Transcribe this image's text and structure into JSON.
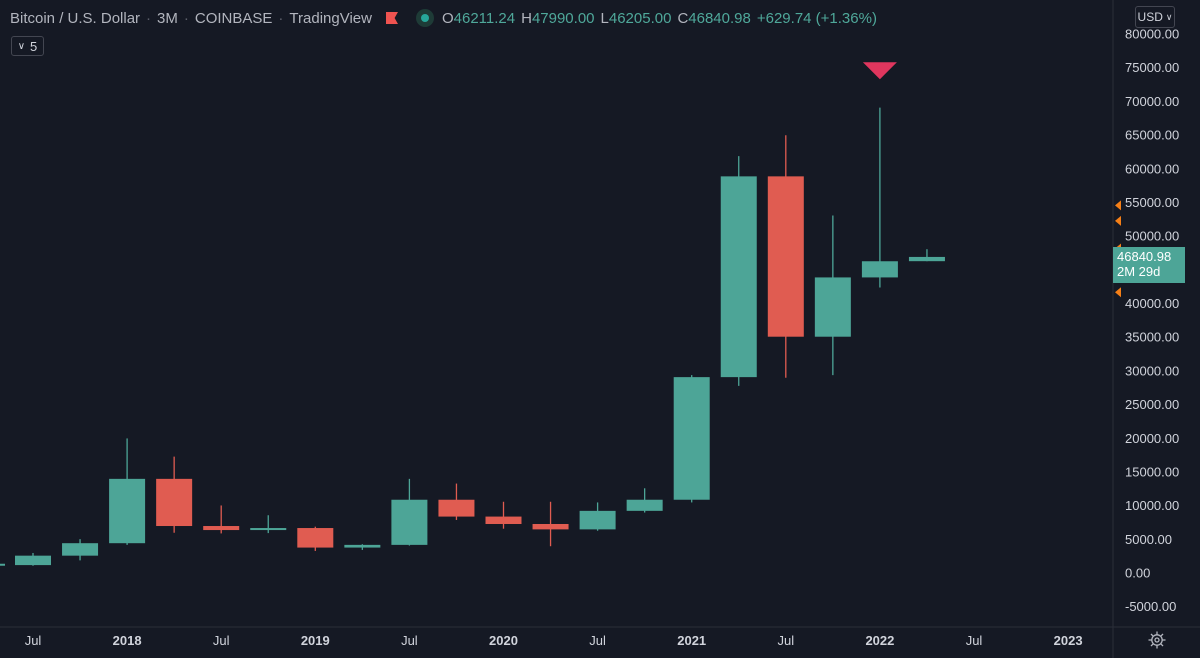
{
  "legend": {
    "symbol": "Bitcoin / U.S. Dollar",
    "interval": "3M",
    "exchange": "COINBASE",
    "source": "TradingView",
    "o_label": "O",
    "o_value": "46211.24",
    "h_label": "H",
    "h_value": "47990.00",
    "l_label": "L",
    "l_value": "46205.00",
    "c_label": "C",
    "c_value": "46840.98",
    "change": "+629.74 (+1.36%)"
  },
  "indicator_toggle": {
    "label": "5"
  },
  "currency": {
    "label": "USD"
  },
  "last_price": {
    "price": "46840.98",
    "countdown": "2M 29d"
  },
  "colors": {
    "background": "#151924",
    "up": "#4da597",
    "down": "#e05c51",
    "marker": "#e0365e",
    "axis_text": "#d1d4dc",
    "alert": "#f57f17"
  },
  "icons": {
    "alert_flag": "flag-icon",
    "status": "dot-icon",
    "settings": "gear-icon",
    "signal": "triangle-down-icon"
  },
  "chart_data": {
    "type": "candlestick",
    "title": "Bitcoin / U.S. Dollar",
    "ylim": [
      -7500,
      82000
    ],
    "y_ticks": [
      "80000.00",
      "75000.00",
      "70000.00",
      "65000.00",
      "60000.00",
      "55000.00",
      "50000.00",
      "45000.00",
      "40000.00",
      "35000.00",
      "30000.00",
      "25000.00",
      "20000.00",
      "15000.00",
      "10000.00",
      "5000.00",
      "0.00",
      "-5000.00"
    ],
    "x_ticks": [
      {
        "label": "Jul",
        "period": 0.5
      },
      {
        "label": "2018",
        "period": 2.5
      },
      {
        "label": "Jul",
        "period": 4.5
      },
      {
        "label": "2019",
        "period": 6.5
      },
      {
        "label": "Jul",
        "period": 8.5
      },
      {
        "label": "2020",
        "period": 10.5
      },
      {
        "label": "Jul",
        "period": 12.5
      },
      {
        "label": "2021",
        "period": 14.5
      },
      {
        "label": "Jul",
        "period": 16.5
      },
      {
        "label": "2022",
        "period": 18.5
      },
      {
        "label": "Jul",
        "period": 20.5
      },
      {
        "label": "2023",
        "period": 22.5
      }
    ],
    "candles": [
      {
        "period": "Q2 2017",
        "o": 1100,
        "h": 2900,
        "l": 1000,
        "c": 2500
      },
      {
        "period": "Q3 2017",
        "o": 2500,
        "h": 4950,
        "l": 1800,
        "c": 4350
      },
      {
        "period": "Q4 2017",
        "o": 4350,
        "h": 19900,
        "l": 4100,
        "c": 13900
      },
      {
        "period": "Q1 2018",
        "o": 13900,
        "h": 17200,
        "l": 5900,
        "c": 6900
      },
      {
        "period": "Q2 2018",
        "o": 6900,
        "h": 9950,
        "l": 5800,
        "c": 6300
      },
      {
        "period": "Q3 2018",
        "o": 6300,
        "h": 8500,
        "l": 5850,
        "c": 6600
      },
      {
        "period": "Q4 2018",
        "o": 6600,
        "h": 6800,
        "l": 3200,
        "c": 3700
      },
      {
        "period": "Q1 2019",
        "o": 3700,
        "h": 4200,
        "l": 3350,
        "c": 4100
      },
      {
        "period": "Q2 2019",
        "o": 4100,
        "h": 13900,
        "l": 4000,
        "c": 10800
      },
      {
        "period": "Q3 2019",
        "o": 10800,
        "h": 13200,
        "l": 7800,
        "c": 8300
      },
      {
        "period": "Q4 2019",
        "o": 8300,
        "h": 10500,
        "l": 6500,
        "c": 7200
      },
      {
        "period": "Q1 2020",
        "o": 7200,
        "h": 10500,
        "l": 3900,
        "c": 6400
      },
      {
        "period": "Q2 2020",
        "o": 6400,
        "h": 10400,
        "l": 6200,
        "c": 9150
      },
      {
        "period": "Q3 2020",
        "o": 9150,
        "h": 12500,
        "l": 8900,
        "c": 10800
      },
      {
        "period": "Q4 2020",
        "o": 10800,
        "h": 29300,
        "l": 10400,
        "c": 29000
      },
      {
        "period": "Q1 2021",
        "o": 29000,
        "h": 61800,
        "l": 27700,
        "c": 58800
      },
      {
        "period": "Q2 2021",
        "o": 58800,
        "h": 64900,
        "l": 28900,
        "c": 35000
      },
      {
        "period": "Q3 2021",
        "o": 35000,
        "h": 53000,
        "l": 29300,
        "c": 43800
      },
      {
        "period": "Q4 2021",
        "o": 43800,
        "h": 69000,
        "l": 42300,
        "c": 46200
      },
      {
        "period": "Q1 2022",
        "o": 46211.24,
        "h": 47990,
        "l": 46205,
        "c": 46840.98
      }
    ],
    "partial_first": {
      "o": 1100,
      "h": 1400,
      "l": 800,
      "c": 1300
    },
    "signal_marker": {
      "period": "Q4 2021",
      "price": 75000
    },
    "alert_marks": [
      54500,
      52200,
      48100,
      41600
    ],
    "last_price": 46840.98
  }
}
